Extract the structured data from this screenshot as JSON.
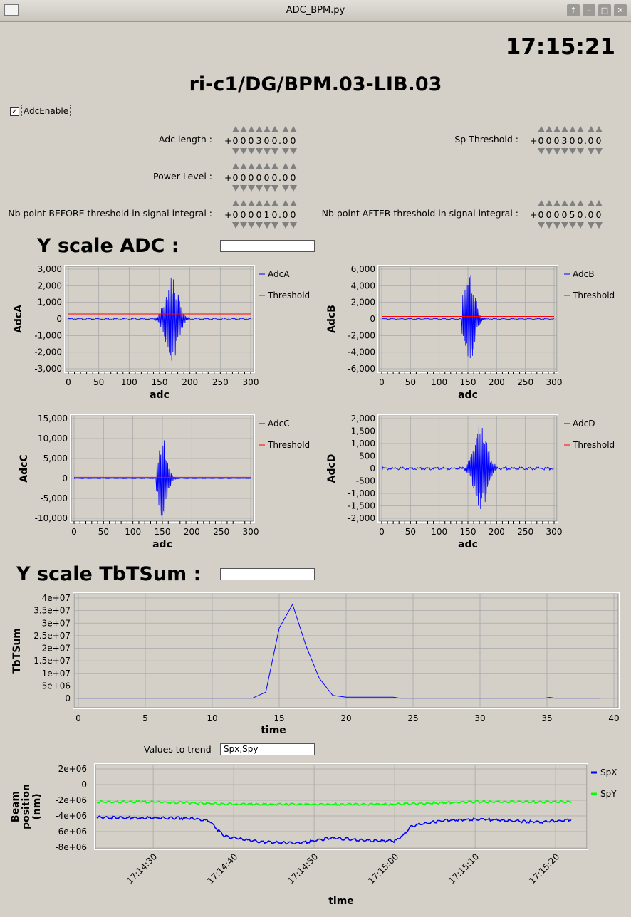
{
  "window": {
    "title": "ADC_BPM.py"
  },
  "clock": "17:15:21",
  "device": "ri-c1/DG/BPM.03-LIB.03",
  "adc_enable": {
    "label": "AdcEnable",
    "checked": true
  },
  "params": [
    {
      "label": "Adc length :",
      "sign": "+",
      "digits": [
        "0",
        "0",
        "0",
        "3",
        "0",
        "0"
      ],
      "decimals": [
        "0",
        "0"
      ]
    },
    {
      "label": "Sp Threshold :",
      "sign": "+",
      "digits": [
        "0",
        "0",
        "0",
        "3",
        "0",
        "0"
      ],
      "decimals": [
        "0",
        "0"
      ]
    },
    {
      "label": "Power Level :",
      "sign": "+",
      "digits": [
        "0",
        "0",
        "0",
        "0",
        "0",
        "0"
      ],
      "decimals": [
        "0",
        "0"
      ]
    },
    {
      "label": "Nb point BEFORE threshold in signal integral :",
      "sign": "+",
      "digits": [
        "0",
        "0",
        "0",
        "0",
        "1",
        "0"
      ],
      "decimals": [
        "0",
        "0"
      ]
    },
    {
      "label": "Nb point AFTER threshold in signal integral :",
      "sign": "+",
      "digits": [
        "0",
        "0",
        "0",
        "0",
        "5",
        "0"
      ],
      "decimals": [
        "0",
        "0"
      ]
    }
  ],
  "yscale_adc": {
    "label": "Y scale ADC :",
    "value": ""
  },
  "yscale_tbt": {
    "label": "Y scale TbTSum :",
    "value": ""
  },
  "trend": {
    "label": "Values to trend",
    "value": "Spx,Spy"
  },
  "colors": {
    "blue": "#0000ff",
    "red": "#ff0000",
    "green": "#00ff00",
    "grid": "#a9a9a9"
  },
  "chart_data": [
    {
      "type": "line",
      "xlabel": "adc",
      "ylabel": "AdcA",
      "xlim": [
        0,
        300
      ],
      "ylim": [
        -3000,
        3000
      ],
      "xticks": [
        0,
        50,
        100,
        150,
        200,
        250,
        300
      ],
      "yticks": [
        -3000,
        -2000,
        -1000,
        0,
        1000,
        2000,
        3000
      ],
      "yticklabels": [
        "-3,000",
        "-2,000",
        "-1,000",
        "0",
        "1,000",
        "2,000",
        "3,000"
      ],
      "series": [
        {
          "name": "AdcA",
          "burst": {
            "center": 170,
            "start": 140,
            "end": 200,
            "amplitude": 2600,
            "noise": 60
          }
        },
        {
          "name": "Threshold",
          "value": 300
        }
      ]
    },
    {
      "type": "line",
      "xlabel": "adc",
      "ylabel": "AdcB",
      "xlim": [
        0,
        300
      ],
      "ylim": [
        -6000,
        6000
      ],
      "xticks": [
        0,
        50,
        100,
        150,
        200,
        250,
        300
      ],
      "yticks": [
        -6000,
        -4000,
        -2000,
        0,
        2000,
        4000,
        6000
      ],
      "yticklabels": [
        "-6,000",
        "-4,000",
        "-2,000",
        "0",
        "2,000",
        "4,000",
        "6,000"
      ],
      "series": [
        {
          "name": "AdcB",
          "burst": {
            "center": 152,
            "start": 140,
            "end": 195,
            "amplitude": 5800,
            "noise": 60
          }
        },
        {
          "name": "Threshold",
          "value": 300
        }
      ]
    },
    {
      "type": "line",
      "xlabel": "adc",
      "ylabel": "AdcC",
      "xlim": [
        0,
        300
      ],
      "ylim": [
        -10000,
        15000
      ],
      "xticks": [
        0,
        50,
        100,
        150,
        200,
        250,
        300
      ],
      "yticks": [
        -10000,
        -5000,
        0,
        5000,
        10000,
        15000
      ],
      "yticklabels": [
        "-10,000",
        "-5,000",
        "0",
        "5,000",
        "10,000",
        "15,000"
      ],
      "series": [
        {
          "name": "AdcC",
          "burst": {
            "center": 150,
            "start": 140,
            "end": 185,
            "amplitude": 10500,
            "noise": 60
          }
        },
        {
          "name": "Threshold",
          "value": 300
        }
      ]
    },
    {
      "type": "line",
      "xlabel": "adc",
      "ylabel": "AdcD",
      "xlim": [
        0,
        300
      ],
      "ylim": [
        -2000,
        2000
      ],
      "xticks": [
        0,
        50,
        100,
        150,
        200,
        250,
        300
      ],
      "yticks": [
        -2000,
        -1500,
        -1000,
        -500,
        0,
        500,
        1000,
        1500,
        2000
      ],
      "yticklabels": [
        "-2,000",
        "-1,500",
        "-1,000",
        "-500",
        "0",
        "500",
        "1,000",
        "1,500",
        "2,000"
      ],
      "series": [
        {
          "name": "AdcD",
          "burst": {
            "center": 172,
            "start": 140,
            "end": 205,
            "amplitude": 1750,
            "noise": 60
          }
        },
        {
          "name": "Threshold",
          "value": 300
        }
      ]
    },
    {
      "type": "line",
      "xlabel": "time",
      "ylabel": "TbTSum",
      "xlim": [
        0,
        40
      ],
      "ylim": [
        0,
        40000000
      ],
      "xticks": [
        0,
        5,
        10,
        15,
        20,
        25,
        30,
        35,
        40
      ],
      "yticks": [
        0,
        5000000,
        10000000,
        15000000,
        20000000,
        25000000,
        30000000,
        35000000,
        40000000
      ],
      "yticklabels": [
        "0",
        "5e+06",
        "1e+07",
        "1.5e+07",
        "2e+07",
        "2.5e+07",
        "3e+07",
        "3.5e+07",
        "4e+07"
      ],
      "series": [
        {
          "name": "TbTSum",
          "x": [
            0,
            13,
            14,
            15,
            16,
            17,
            18,
            19,
            20,
            23.5,
            24,
            34.8,
            35.2,
            35.6,
            39
          ],
          "y": [
            100000,
            100000,
            2500000,
            28000000,
            37500000,
            21000000,
            8000000,
            1200000,
            500000,
            500000,
            100000,
            100000,
            400000,
            100000,
            100000
          ]
        }
      ]
    },
    {
      "type": "line",
      "xlabel": "time",
      "ylabel": "Beam position (nm)",
      "ylim": [
        -8000000,
        2000000
      ],
      "xlim_seconds": [
        23,
        83
      ],
      "xticks_seconds": [
        30,
        40,
        50,
        60,
        70,
        80
      ],
      "xticklabels": [
        "17:14:30",
        "17:14:40",
        "17:14:50",
        "17:15:00",
        "17:15:10",
        "17:15:20"
      ],
      "yticks": [
        -8000000,
        -6000000,
        -4000000,
        -2000000,
        0,
        2000000
      ],
      "yticklabels": [
        "-8e+06",
        "-6e+06",
        "-4e+06",
        "-2e+06",
        "0",
        "2e+06"
      ],
      "series": [
        {
          "name": "SpX",
          "x": [
            23,
            35,
            36,
            37,
            38,
            39,
            43,
            48,
            50,
            52,
            56,
            60,
            61,
            62,
            63,
            66,
            70,
            74,
            78,
            81,
            82
          ],
          "y": [
            -4200000,
            -4300000,
            -4500000,
            -4600000,
            -5800000,
            -6600000,
            -7300000,
            -7500000,
            -7200000,
            -6800000,
            -7100000,
            -7200000,
            -6500000,
            -5400000,
            -5100000,
            -4600000,
            -4400000,
            -4600000,
            -4800000,
            -4600000,
            -4500000
          ],
          "noise": 180000
        },
        {
          "name": "SpY",
          "x": [
            23,
            30,
            40,
            50,
            60,
            70,
            82
          ],
          "y": [
            -2200000,
            -2200000,
            -2500000,
            -2500000,
            -2500000,
            -2200000,
            -2200000
          ],
          "noise": 150000
        }
      ]
    }
  ]
}
